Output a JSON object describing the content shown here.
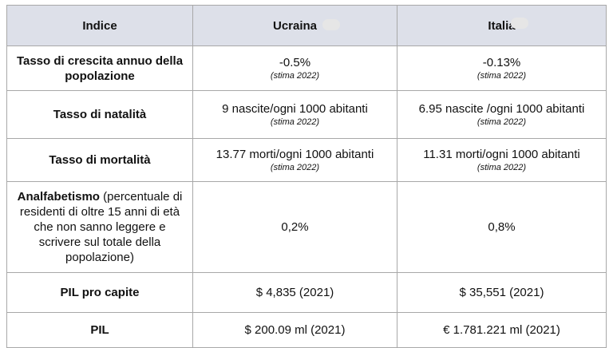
{
  "header": {
    "col1": "Indice",
    "col2": "Ucraina",
    "col3": "Italia"
  },
  "rows": [
    {
      "label": "Tasso di crescita annuo della popolazione",
      "ukraine": {
        "value": "-0.5%",
        "note": "(stima 2022)"
      },
      "italy": {
        "value": "-0.13%",
        "note": "(stima 2022)"
      }
    },
    {
      "label": "Tasso di natalità",
      "ukraine": {
        "value": "9 nascite/ogni 1000 abitanti",
        "note": "(stima 2022)"
      },
      "italy": {
        "value": "6.95 nascite /ogni 1000 abitanti",
        "note": "(stima 2022)"
      }
    },
    {
      "label": "Tasso di mortalità",
      "ukraine": {
        "value": "13.77 morti/ogni 1000 abitanti",
        "note": "(stima 2022)"
      },
      "italy": {
        "value": "11.31 morti/ogni 1000 abitanti",
        "note": "(stima 2022)"
      }
    },
    {
      "label_bold": "Analfabetismo",
      "label_rest": " (percentuale di residenti di oltre 15 anni di età che non sanno leggere e scrivere sul totale della popolazione)",
      "ukraine": {
        "value": "0,2%"
      },
      "italy": {
        "value": "0,8%"
      }
    },
    {
      "label": "PIL pro capite",
      "ukraine": {
        "value": "$ 4,835 (2021)"
      },
      "italy": {
        "value": "$ 35,551 (2021)"
      }
    },
    {
      "label": "PIL",
      "ukraine": {
        "value": "$ 200.09 ml (2021)"
      },
      "italy": {
        "value": "€  1.781.221 ml (2021)"
      }
    }
  ]
}
